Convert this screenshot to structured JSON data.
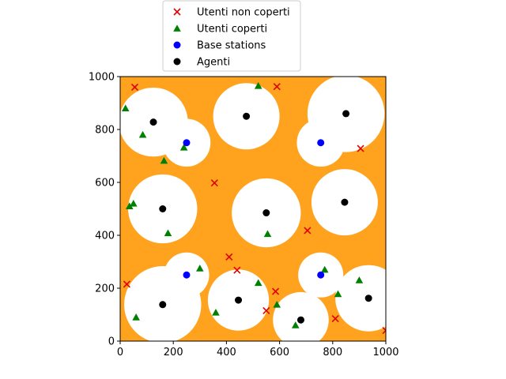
{
  "chart_data": {
    "type": "scatter",
    "xlim": [
      0,
      1000
    ],
    "ylim": [
      0,
      1000
    ],
    "xticks": [
      "0",
      "200",
      "400",
      "600",
      "800",
      "1000"
    ],
    "yticks": [
      "0",
      "200",
      "400",
      "600",
      "800",
      "1000"
    ],
    "grid": false,
    "legend_placement": "top-center-outside",
    "colors": {
      "background_field": "#ffa31f",
      "covered_area": "#ffffff",
      "uncovered_users": "#e00000",
      "covered_users": "#008000",
      "base_stations": "#0000ff",
      "agents": "#000000"
    },
    "series": [
      {
        "name": "Utenti non coperti",
        "marker": "x",
        "color": "#e00000",
        "points": [
          [
            55,
            960
          ],
          [
            590,
            962
          ],
          [
            905,
            728
          ],
          [
            355,
            598
          ],
          [
            705,
            418
          ],
          [
            410,
            318
          ],
          [
            440,
            268
          ],
          [
            25,
            215
          ],
          [
            585,
            188
          ],
          [
            550,
            115
          ],
          [
            810,
            85
          ],
          [
            1000,
            40
          ]
        ]
      },
      {
        "name": "Utenti coperti",
        "marker": "triangle",
        "color": "#008000",
        "points": [
          [
            20,
            880
          ],
          [
            520,
            965
          ],
          [
            85,
            780
          ],
          [
            240,
            732
          ],
          [
            165,
            682
          ],
          [
            35,
            510
          ],
          [
            50,
            520
          ],
          [
            180,
            408
          ],
          [
            555,
            405
          ],
          [
            300,
            275
          ],
          [
            770,
            270
          ],
          [
            520,
            220
          ],
          [
            900,
            230
          ],
          [
            820,
            178
          ],
          [
            590,
            138
          ],
          [
            360,
            108
          ],
          [
            60,
            90
          ],
          [
            660,
            60
          ]
        ]
      },
      {
        "name": "Base stations",
        "marker": "circle",
        "color": "#0000ff",
        "points": [
          [
            250,
            750
          ],
          [
            755,
            750
          ],
          [
            250,
            250
          ],
          [
            755,
            250
          ]
        ]
      },
      {
        "name": "Agenti",
        "marker": "circle",
        "color": "#000000",
        "points": [
          [
            125,
            828
          ],
          [
            475,
            850
          ],
          [
            850,
            860
          ],
          [
            160,
            500
          ],
          [
            550,
            485
          ],
          [
            845,
            525
          ],
          [
            160,
            138
          ],
          [
            445,
            155
          ],
          [
            680,
            80
          ],
          [
            935,
            162
          ]
        ]
      }
    ],
    "coverage_circles": [
      {
        "cx": 125,
        "cy": 828,
        "r": 130
      },
      {
        "cx": 475,
        "cy": 850,
        "r": 125
      },
      {
        "cx": 850,
        "cy": 860,
        "r": 145
      },
      {
        "cx": 160,
        "cy": 500,
        "r": 130
      },
      {
        "cx": 550,
        "cy": 485,
        "r": 130
      },
      {
        "cx": 845,
        "cy": 525,
        "r": 125
      },
      {
        "cx": 160,
        "cy": 138,
        "r": 145
      },
      {
        "cx": 445,
        "cy": 155,
        "r": 115
      },
      {
        "cx": 680,
        "cy": 80,
        "r": 105
      },
      {
        "cx": 935,
        "cy": 162,
        "r": 125
      },
      {
        "cx": 250,
        "cy": 750,
        "r": 90
      },
      {
        "cx": 755,
        "cy": 750,
        "r": 90
      },
      {
        "cx": 250,
        "cy": 250,
        "r": 85
      },
      {
        "cx": 755,
        "cy": 250,
        "r": 85
      }
    ]
  }
}
